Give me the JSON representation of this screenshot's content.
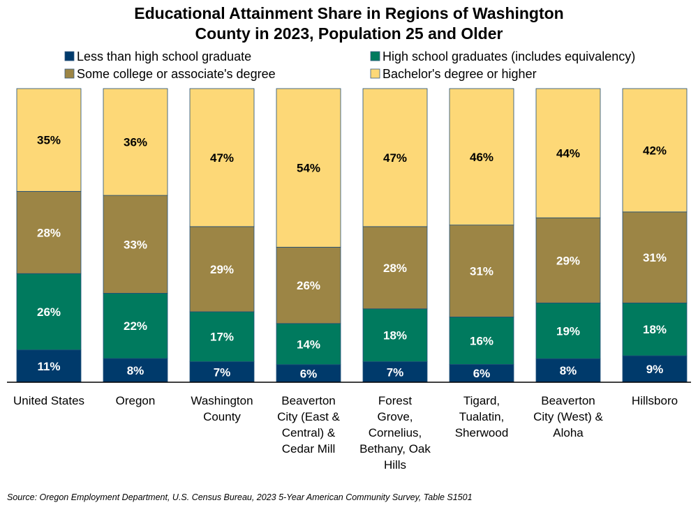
{
  "chart_data": {
    "type": "bar",
    "stacked": true,
    "title": "Educational Attainment Share in Regions of Washington County in 2023, Population 25 and Older",
    "title_lines": [
      "Educational Attainment Share in Regions of Washington",
      "County in 2023, Population 25 and Older"
    ],
    "categories": [
      "United States",
      "Oregon",
      "Washington County",
      "Beaverton City (East & Central) & Cedar Mill",
      "Forest Grove, Cornelius, Bethany, Oak Hills",
      "Tigard, Tualatin, Sherwood",
      "Beaverton City (West) & Aloha",
      "Hillsboro"
    ],
    "category_lines": [
      [
        "United States"
      ],
      [
        "Oregon"
      ],
      [
        "Washington",
        "County"
      ],
      [
        "Beaverton",
        "City (East &",
        "Central) &",
        "Cedar Mill"
      ],
      [
        "Forest",
        "Grove,",
        "Cornelius,",
        "Bethany, Oak",
        "Hills"
      ],
      [
        "Tigard,",
        "Tualatin,",
        "Sherwood"
      ],
      [
        "Beaverton",
        "City (West) &",
        "Aloha"
      ],
      [
        "Hillsboro"
      ]
    ],
    "series": [
      {
        "name": "Less than high school graduate",
        "color": "#003A6B",
        "label_color": "#ffffff",
        "values": [
          11,
          8,
          7,
          6,
          7,
          6,
          8,
          9
        ]
      },
      {
        "name": "High school graduates (includes equivalency)",
        "color": "#007A5E",
        "label_color": "#ffffff",
        "values": [
          26,
          22,
          17,
          14,
          18,
          16,
          19,
          18
        ]
      },
      {
        "name": "Some college or associate's degree",
        "color": "#9C8545",
        "label_color": "#ffffff",
        "values": [
          28,
          33,
          29,
          26,
          28,
          31,
          29,
          31
        ]
      },
      {
        "name": "Bachelor's degree or higher",
        "color": "#FDD877",
        "label_color": "#000000",
        "values": [
          35,
          36,
          47,
          54,
          47,
          46,
          44,
          42
        ]
      }
    ],
    "value_suffix": "%",
    "ylim": [
      0,
      100
    ],
    "grid": false,
    "legend_position": "top",
    "source": "Source: Oregon Employment Department, U.S. Census Bureau, 2023 5-Year American Community Survey, Table S1501"
  }
}
